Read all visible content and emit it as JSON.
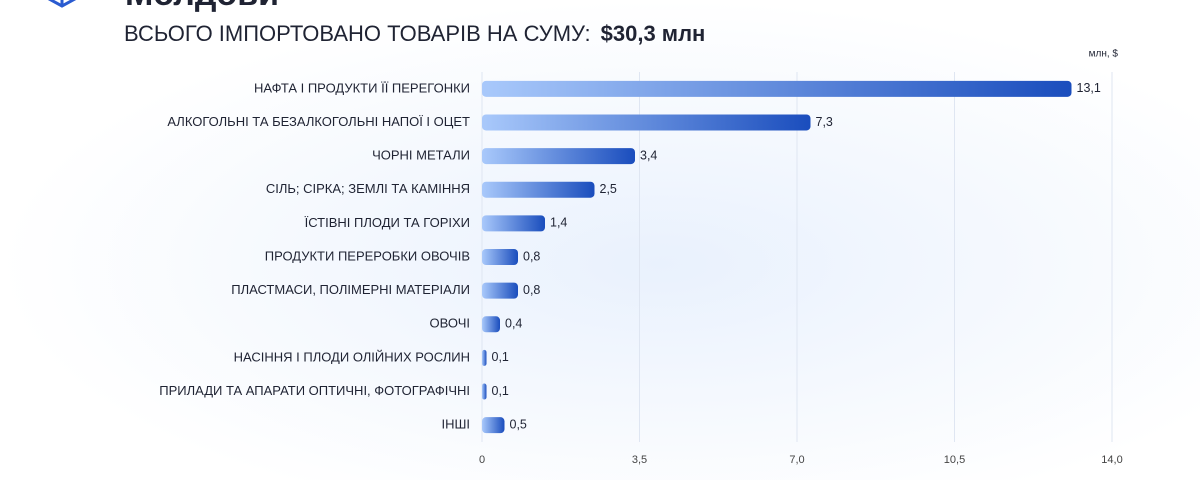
{
  "chart_data": {
    "type": "bar",
    "orientation": "horizontal",
    "title": "Молдови",
    "subtitle": "ВСЬОГО ІМПОРТОВАНО ТОВАРІВ НА СУМУ:",
    "subtitle_total": "$30,3 млн",
    "unit_label": "млн, $",
    "categories": [
      "НАФТА І ПРОДУКТИ ЇЇ ПЕРЕГОНКИ",
      "АЛКОГОЛЬНІ ТА БЕЗАЛКОГОЛЬНІ НАПОЇ І ОЦЕТ",
      "ЧОРНІ МЕТАЛИ",
      "СІЛЬ; СІРКА; ЗЕМЛІ ТА КАМІННЯ",
      "ЇСТІВНІ ПЛОДИ ТА ГОРІХИ",
      "ПРОДУКТИ ПЕРЕРОБКИ ОВОЧІВ",
      "ПЛАСТМАСИ, ПОЛІМЕРНІ МАТЕРІАЛИ",
      "ОВОЧІ",
      "НАСІННЯ І ПЛОДИ ОЛІЙНИХ РОСЛИН",
      "ПРИЛАДИ ТА АПАРАТИ ОПТИЧНІ, ФОТОГРАФІЧНІ",
      "ІНШІ"
    ],
    "values": [
      13.1,
      7.3,
      3.4,
      2.5,
      1.4,
      0.8,
      0.8,
      0.4,
      0.1,
      0.1,
      0.5
    ],
    "value_labels": [
      "13,1",
      "7,3",
      "3,4",
      "2,5",
      "1,4",
      "0,8",
      "0,8",
      "0,4",
      "0,1",
      "0,1",
      "0,5"
    ],
    "colors": [
      "#a9c9fb",
      "#1a4dbd"
    ],
    "xlim": [
      0,
      14
    ],
    "xticks": [
      0,
      {
        "value": 3.5,
        "label": "3,5"
      },
      {
        "value": 7,
        "label": "7,0"
      },
      {
        "value": 10.5,
        "label": "10,5"
      },
      {
        "value": 14,
        "label": "14,0"
      }
    ],
    "grid": true
  }
}
